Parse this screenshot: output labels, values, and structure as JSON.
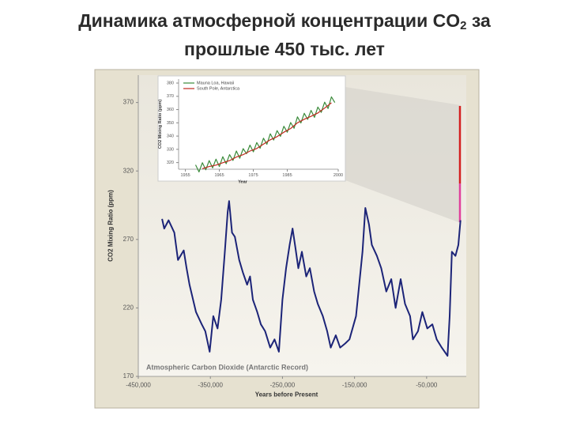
{
  "title": {
    "line1": "Динамика атмосферной концентрации  CO",
    "sub": "2",
    "line1_end": "за",
    "line2": "прошлые 450 тыс. лет"
  },
  "chart_data": [
    {
      "type": "line",
      "color": "#1c2478",
      "annotation": "Atmospheric Carbon Dioxide (Antarctic Record)",
      "x_label": "Years before Present",
      "y_label": "CO2 Mixing Ratio (ppm)",
      "xlim": [
        -450000,
        5000
      ],
      "ylim": [
        170,
        390
      ],
      "xticks": [
        {
          "value": -450000,
          "label": "-450,000"
        },
        {
          "value": -350000,
          "label": "-350,000"
        },
        {
          "value": -250000,
          "label": "-250,000"
        },
        {
          "value": -150000,
          "label": "-150,000"
        },
        {
          "value": -50000,
          "label": "-50,000"
        }
      ],
      "yticks": [
        170,
        220,
        270,
        320,
        370
      ],
      "x": [
        -417000,
        -414000,
        -408000,
        -400000,
        -395000,
        -387000,
        -383000,
        -379000,
        -374000,
        -370000,
        -362000,
        -357000,
        -351000,
        -346000,
        -340000,
        -335000,
        -330000,
        -326000,
        -324000,
        -320000,
        -316000,
        -310000,
        -305000,
        -299000,
        -295000,
        -291000,
        -285000,
        -280000,
        -274000,
        -267000,
        -261000,
        -255000,
        -250000,
        -245000,
        -240000,
        -236000,
        -232000,
        -228000,
        -223000,
        -217000,
        -212000,
        -206000,
        -201000,
        -194000,
        -188000,
        -183000,
        -176000,
        -170000,
        -163000,
        -157000,
        -148000,
        -139000,
        -135000,
        -130000,
        -126000,
        -119000,
        -113000,
        -106000,
        -99000,
        -93000,
        -86000,
        -80000,
        -73000,
        -69000,
        -62000,
        -56000,
        -49000,
        -42000,
        -36000,
        -29000,
        -21000,
        -18000,
        -15000,
        -10000,
        -6000,
        -3000
      ],
      "values": [
        285,
        278,
        284,
        275,
        255,
        262,
        249,
        237,
        226,
        217,
        208,
        203,
        188,
        214,
        205,
        226,
        261,
        290,
        298,
        275,
        272,
        255,
        246,
        237,
        243,
        226,
        217,
        208,
        203,
        191,
        197,
        188,
        226,
        249,
        266,
        278,
        264,
        249,
        261,
        243,
        249,
        232,
        223,
        214,
        203,
        191,
        200,
        191,
        194,
        197,
        214,
        261,
        293,
        281,
        266,
        258,
        249,
        232,
        241,
        220,
        241,
        223,
        214,
        197,
        203,
        217,
        205,
        208,
        197,
        191,
        185,
        214,
        261,
        258,
        266,
        284
      ]
    },
    {
      "type": "line",
      "x_label": "Year",
      "y_label": "CO2 Mixing Ratio (ppm)",
      "xlim": [
        1953,
        2000
      ],
      "ylim": [
        315,
        383
      ],
      "xticks": [
        1955,
        1965,
        1975,
        1985,
        2000
      ],
      "yticks": [
        320,
        330,
        340,
        350,
        360,
        370,
        380
      ],
      "series": [
        {
          "name": "Mauna Loa, Hawaii",
          "color": "#3a8a3a",
          "x": [
            1958,
            1959,
            1960,
            1961,
            1962,
            1963,
            1964,
            1965,
            1966,
            1967,
            1968,
            1969,
            1970,
            1971,
            1972,
            1973,
            1974,
            1975,
            1976,
            1977,
            1978,
            1979,
            1980,
            1981,
            1982,
            1983,
            1984,
            1985,
            1986,
            1987,
            1988,
            1989,
            1990,
            1991,
            1992,
            1993,
            1994,
            1995,
            1996,
            1997,
            1998,
            1999
          ],
          "values": [
            318.3,
            313,
            319.9,
            314.6,
            321.5,
            316,
            322.6,
            317,
            324.4,
            319.2,
            326,
            321.6,
            328.7,
            323.3,
            330.5,
            326.7,
            333.2,
            328.1,
            335.1,
            330.8,
            338.4,
            333.8,
            341.7,
            337,
            344.1,
            339.8,
            347.4,
            342.9,
            350.2,
            345.9,
            354.5,
            349.9,
            357.2,
            352.6,
            359.4,
            354.1,
            361.9,
            357.9,
            365.6,
            360.8,
            369.6,
            365.3
          ]
        },
        {
          "name": "South Pole, Antarctica",
          "color": "#c0281e",
          "x": [
            1960,
            1962,
            1964,
            1966,
            1968,
            1970,
            1972,
            1974,
            1976,
            1978,
            1980,
            1982,
            1984,
            1986,
            1988,
            1990,
            1992,
            1994,
            1996,
            1998
          ],
          "values": [
            315.4,
            317,
            318.1,
            319.9,
            321.5,
            324.2,
            326,
            328.7,
            330.6,
            333.9,
            337.2,
            339.6,
            342.9,
            345.7,
            350,
            352.7,
            354.9,
            357.4,
            361.1,
            365.1
          ]
        }
      ]
    }
  ]
}
